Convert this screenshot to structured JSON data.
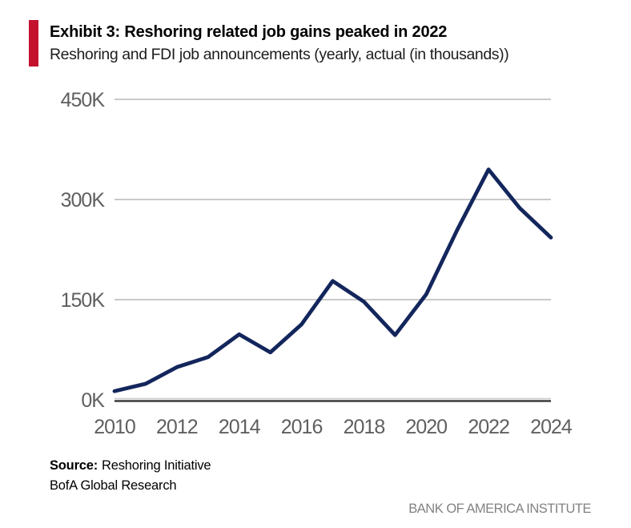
{
  "exhibit": {
    "accent_color": "#C4122E"
  },
  "chart_data": {
    "type": "line",
    "title": "Exhibit 3: Reshoring related job gains peaked in 2022",
    "subtitle": "Reshoring and FDI job announcements (yearly, actual (in thousands))",
    "unit": "thousands of jobs",
    "x": [
      2010,
      2011,
      2012,
      2013,
      2014,
      2015,
      2016,
      2017,
      2018,
      2019,
      2020,
      2021,
      2022,
      2023,
      2024
    ],
    "series": [
      {
        "name": "Reshoring and FDI job announcements (thousands)",
        "values": [
          13,
          24,
          49,
          64,
          98,
          71,
          113,
          178,
          147,
          97,
          158,
          255,
          345,
          287,
          243
        ]
      }
    ],
    "ylim": [
      0,
      450
    ],
    "yticks": [
      0,
      150,
      300,
      450
    ],
    "ytick_labels": [
      "0K",
      "150K",
      "300K",
      "450K"
    ],
    "xticks": [
      2010,
      2012,
      2014,
      2016,
      2018,
      2020,
      2022,
      2024
    ],
    "xtick_labels": [
      "2010",
      "2012",
      "2014",
      "2016",
      "2018",
      "2020",
      "2022",
      "2024"
    ],
    "grid": "horizontal",
    "legend": "none",
    "line_color": "#13265C",
    "grid_color": "#C9C9C9",
    "axis_color": "#3B3B3B",
    "tick_label_color": "#5F5F5F"
  },
  "footer": {
    "source_label": "Source:",
    "source_rest": "Reshoring Initiative",
    "source_line2": "BofA Global Research",
    "institute_label": "BANK OF AMERICA INSTITUTE"
  }
}
